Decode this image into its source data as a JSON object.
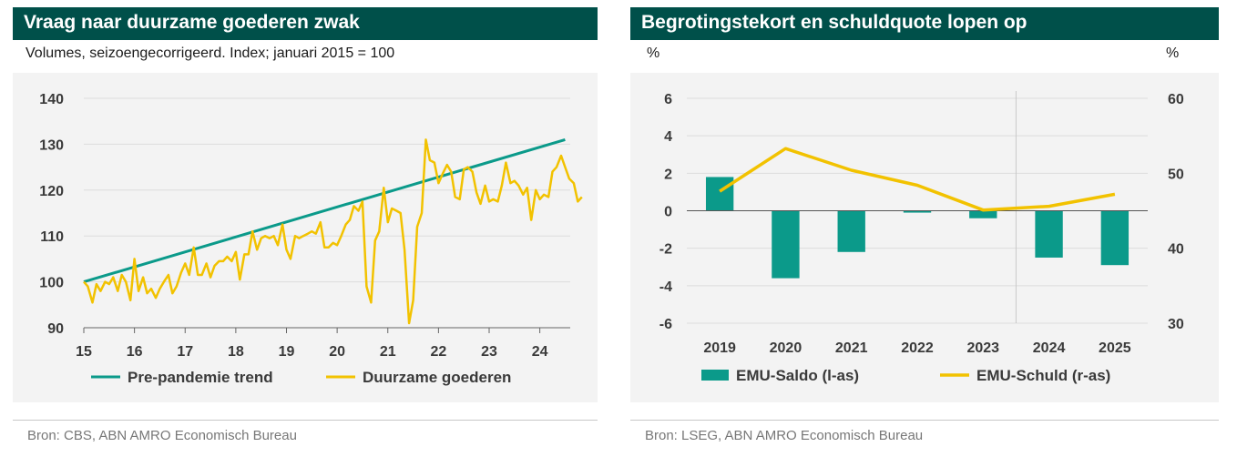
{
  "left": {
    "title": "Vraag naar duurzame goederen zwak",
    "subtitle": "Volumes, seizoengecorrigeerd. Index; januari 2015 = 100",
    "source": "Bron: CBS, ABN AMRO Economisch Bureau"
  },
  "right": {
    "title": "Begrotingstekort en schuldquote lopen op",
    "unit_left": "%",
    "unit_right": "%",
    "source": "Bron: LSEG, ABN AMRO Economisch Bureau"
  },
  "colors": {
    "teal": "#0b9a8a",
    "yellow": "#f2c200",
    "header": "#00504a"
  },
  "chart_data": [
    {
      "type": "line",
      "title": "Vraag naar duurzame goederen zwak",
      "subtitle": "Volumes, seizoengecorrigeerd. Index; januari 2015 = 100",
      "x_tick_labels": [
        "15",
        "16",
        "17",
        "18",
        "19",
        "20",
        "21",
        "22",
        "23",
        "24"
      ],
      "y_ticks": [
        90,
        100,
        110,
        120,
        130,
        140
      ],
      "xlim": [
        2015,
        2024.6
      ],
      "ylim": [
        90,
        140
      ],
      "grid": "horizontal",
      "legend_position": "bottom",
      "series": [
        {
          "name": "Pre-pandemie trend",
          "color": "#0b9a8a",
          "points": [
            [
              2015.0,
              100.0
            ],
            [
              2024.5,
              131.0
            ]
          ]
        },
        {
          "name": "Duurzame goederen",
          "color": "#f2c200",
          "points": [
            [
              2015.0,
              100
            ],
            [
              2015.08,
              99
            ],
            [
              2015.17,
              95.5
            ],
            [
              2015.25,
              99.5
            ],
            [
              2015.33,
              98
            ],
            [
              2015.42,
              100
            ],
            [
              2015.5,
              99.5
            ],
            [
              2015.58,
              101
            ],
            [
              2015.67,
              98
            ],
            [
              2015.75,
              101.5
            ],
            [
              2015.83,
              100
            ],
            [
              2015.92,
              96
            ],
            [
              2016.0,
              105
            ],
            [
              2016.08,
              98
            ],
            [
              2016.17,
              101
            ],
            [
              2016.25,
              97.5
            ],
            [
              2016.33,
              98.5
            ],
            [
              2016.42,
              96.5
            ],
            [
              2016.5,
              98.5
            ],
            [
              2016.58,
              100
            ],
            [
              2016.67,
              101.5
            ],
            [
              2016.75,
              97.5
            ],
            [
              2016.83,
              99
            ],
            [
              2016.92,
              102
            ],
            [
              2017.0,
              104
            ],
            [
              2017.08,
              101.5
            ],
            [
              2017.17,
              107.5
            ],
            [
              2017.25,
              101.5
            ],
            [
              2017.33,
              101.5
            ],
            [
              2017.42,
              104
            ],
            [
              2017.5,
              101
            ],
            [
              2017.58,
              103.5
            ],
            [
              2017.67,
              104.5
            ],
            [
              2017.75,
              104.5
            ],
            [
              2017.83,
              105.5
            ],
            [
              2017.92,
              104.5
            ],
            [
              2018.0,
              106.5
            ],
            [
              2018.08,
              100.5
            ],
            [
              2018.17,
              106
            ],
            [
              2018.25,
              106
            ],
            [
              2018.33,
              111
            ],
            [
              2018.42,
              107
            ],
            [
              2018.5,
              109.5
            ],
            [
              2018.58,
              110
            ],
            [
              2018.67,
              109.5
            ],
            [
              2018.75,
              110
            ],
            [
              2018.83,
              108
            ],
            [
              2018.92,
              112.5
            ],
            [
              2019.0,
              107
            ],
            [
              2019.08,
              105
            ],
            [
              2019.17,
              110
            ],
            [
              2019.25,
              109.5
            ],
            [
              2019.33,
              110
            ],
            [
              2019.42,
              110.5
            ],
            [
              2019.5,
              111
            ],
            [
              2019.58,
              110.5
            ],
            [
              2019.67,
              113
            ],
            [
              2019.75,
              107.5
            ],
            [
              2019.83,
              107.5
            ],
            [
              2019.92,
              108.5
            ],
            [
              2020.0,
              108
            ],
            [
              2020.08,
              110
            ],
            [
              2020.17,
              112.5
            ],
            [
              2020.25,
              113.5
            ],
            [
              2020.33,
              116.5
            ],
            [
              2020.42,
              115.5
            ],
            [
              2020.5,
              117.5
            ],
            [
              2020.58,
              99
            ],
            [
              2020.67,
              95.5
            ],
            [
              2020.75,
              109
            ],
            [
              2020.83,
              111
            ],
            [
              2020.92,
              120.5
            ],
            [
              2021.0,
              113
            ],
            [
              2021.08,
              116
            ],
            [
              2021.17,
              115.5
            ],
            [
              2021.25,
              115
            ],
            [
              2021.33,
              107
            ],
            [
              2021.42,
              91
            ],
            [
              2021.5,
              96
            ],
            [
              2021.58,
              112
            ],
            [
              2021.67,
              115
            ],
            [
              2021.75,
              131
            ],
            [
              2021.83,
              126.5
            ],
            [
              2021.92,
              126
            ],
            [
              2022.0,
              121.5
            ],
            [
              2022.08,
              123.5
            ],
            [
              2022.17,
              125.5
            ],
            [
              2022.25,
              124
            ],
            [
              2022.33,
              118.5
            ],
            [
              2022.42,
              118
            ],
            [
              2022.5,
              124.5
            ],
            [
              2022.58,
              125
            ],
            [
              2022.67,
              124
            ],
            [
              2022.75,
              119.5
            ],
            [
              2022.83,
              117
            ],
            [
              2022.92,
              121
            ],
            [
              2023.0,
              117.5
            ],
            [
              2023.08,
              118
            ],
            [
              2023.17,
              117.5
            ],
            [
              2023.25,
              121
            ],
            [
              2023.33,
              126
            ],
            [
              2023.42,
              121.5
            ],
            [
              2023.5,
              122
            ],
            [
              2023.58,
              121
            ],
            [
              2023.67,
              119
            ],
            [
              2023.75,
              120.5
            ],
            [
              2023.83,
              113.5
            ],
            [
              2023.92,
              120
            ],
            [
              2024.0,
              118
            ],
            [
              2024.08,
              119
            ],
            [
              2024.17,
              118.5
            ],
            [
              2024.25,
              124
            ],
            [
              2024.33,
              125
            ],
            [
              2024.42,
              127.5
            ],
            [
              2024.5,
              125
            ],
            [
              2024.58,
              122.5
            ],
            [
              2024.67,
              121.5
            ],
            [
              2024.75,
              117.5
            ],
            [
              2024.83,
              118.5
            ]
          ]
        }
      ]
    },
    {
      "type": "bar+line",
      "title": "Begrotingstekort en schuldquote lopen op",
      "categories": [
        "2019",
        "2020",
        "2021",
        "2022",
        "2023",
        "2024",
        "2025"
      ],
      "y_left_ticks": [
        -6,
        -4,
        -2,
        0,
        2,
        4,
        6
      ],
      "y_right_ticks": [
        30,
        40,
        50,
        60
      ],
      "ylim_left": [
        -6,
        6
      ],
      "ylim_right": [
        30,
        60
      ],
      "forecast_divider_after": "2023",
      "grid": "horizontal",
      "legend_position": "bottom",
      "series": [
        {
          "name": "EMU-Saldo (l-as)",
          "kind": "bar",
          "axis": "left",
          "color": "#0b9a8a",
          "values": [
            1.8,
            -3.6,
            -2.2,
            -0.1,
            -0.4,
            -2.5,
            -2.9
          ]
        },
        {
          "name": "EMU-Schuld (r-as)",
          "kind": "line",
          "axis": "right",
          "color": "#f2c200",
          "values": [
            47.6,
            53.3,
            50.4,
            48.4,
            45.1,
            45.6,
            47.2
          ]
        }
      ]
    }
  ]
}
